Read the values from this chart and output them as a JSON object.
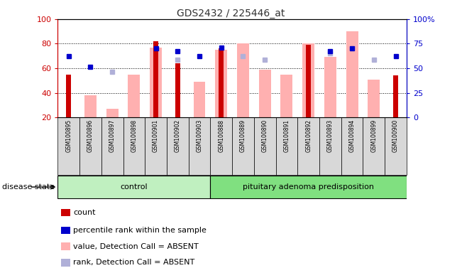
{
  "title": "GDS2432 / 225446_at",
  "samples": [
    "GSM100895",
    "GSM100896",
    "GSM100897",
    "GSM100898",
    "GSM100901",
    "GSM100902",
    "GSM100903",
    "GSM100888",
    "GSM100889",
    "GSM100890",
    "GSM100891",
    "GSM100892",
    "GSM100893",
    "GSM100894",
    "GSM100899",
    "GSM100900"
  ],
  "n_control": 7,
  "n_adenoma": 9,
  "count_values": [
    55,
    null,
    null,
    null,
    82,
    64,
    null,
    76,
    null,
    null,
    null,
    79,
    null,
    null,
    null,
    54
  ],
  "percentile_values": [
    70,
    61,
    null,
    null,
    76,
    74,
    70,
    77,
    null,
    null,
    null,
    null,
    74,
    76,
    null,
    70
  ],
  "value_absent": [
    null,
    38,
    27,
    55,
    77,
    null,
    49,
    75,
    80,
    59,
    55,
    80,
    69,
    90,
    51,
    null
  ],
  "rank_absent": [
    null,
    null,
    57,
    null,
    null,
    67,
    null,
    null,
    70,
    67,
    null,
    null,
    72,
    null,
    67,
    null
  ],
  "ylim_left": [
    20,
    100
  ],
  "yticks_left": [
    20,
    40,
    60,
    80,
    100
  ],
  "yticks_right_vals": [
    20,
    40,
    60,
    80,
    100
  ],
  "yticklabels_right": [
    "0",
    "25",
    "50",
    "75",
    "100%"
  ],
  "grid_lines": [
    40,
    60,
    80
  ],
  "colors": {
    "count": "#cc0000",
    "percentile": "#0000cc",
    "value_absent": "#ffb0b0",
    "rank_absent": "#b0b0d8",
    "left_axis": "#cc0000",
    "right_axis": "#0000cc",
    "sample_bg": "#d8d8d8",
    "control_bg": "#c0f0c0",
    "adenoma_bg": "#80e080",
    "title": "#333333"
  },
  "disease_state_label": "disease state",
  "control_label": "control",
  "adenoma_label": "pituitary adenoma predisposition",
  "legend": [
    {
      "label": "count",
      "color": "#cc0000"
    },
    {
      "label": "percentile rank within the sample",
      "color": "#0000cc"
    },
    {
      "label": "value, Detection Call = ABSENT",
      "color": "#ffb0b0"
    },
    {
      "label": "rank, Detection Call = ABSENT",
      "color": "#b0b0d8"
    }
  ]
}
